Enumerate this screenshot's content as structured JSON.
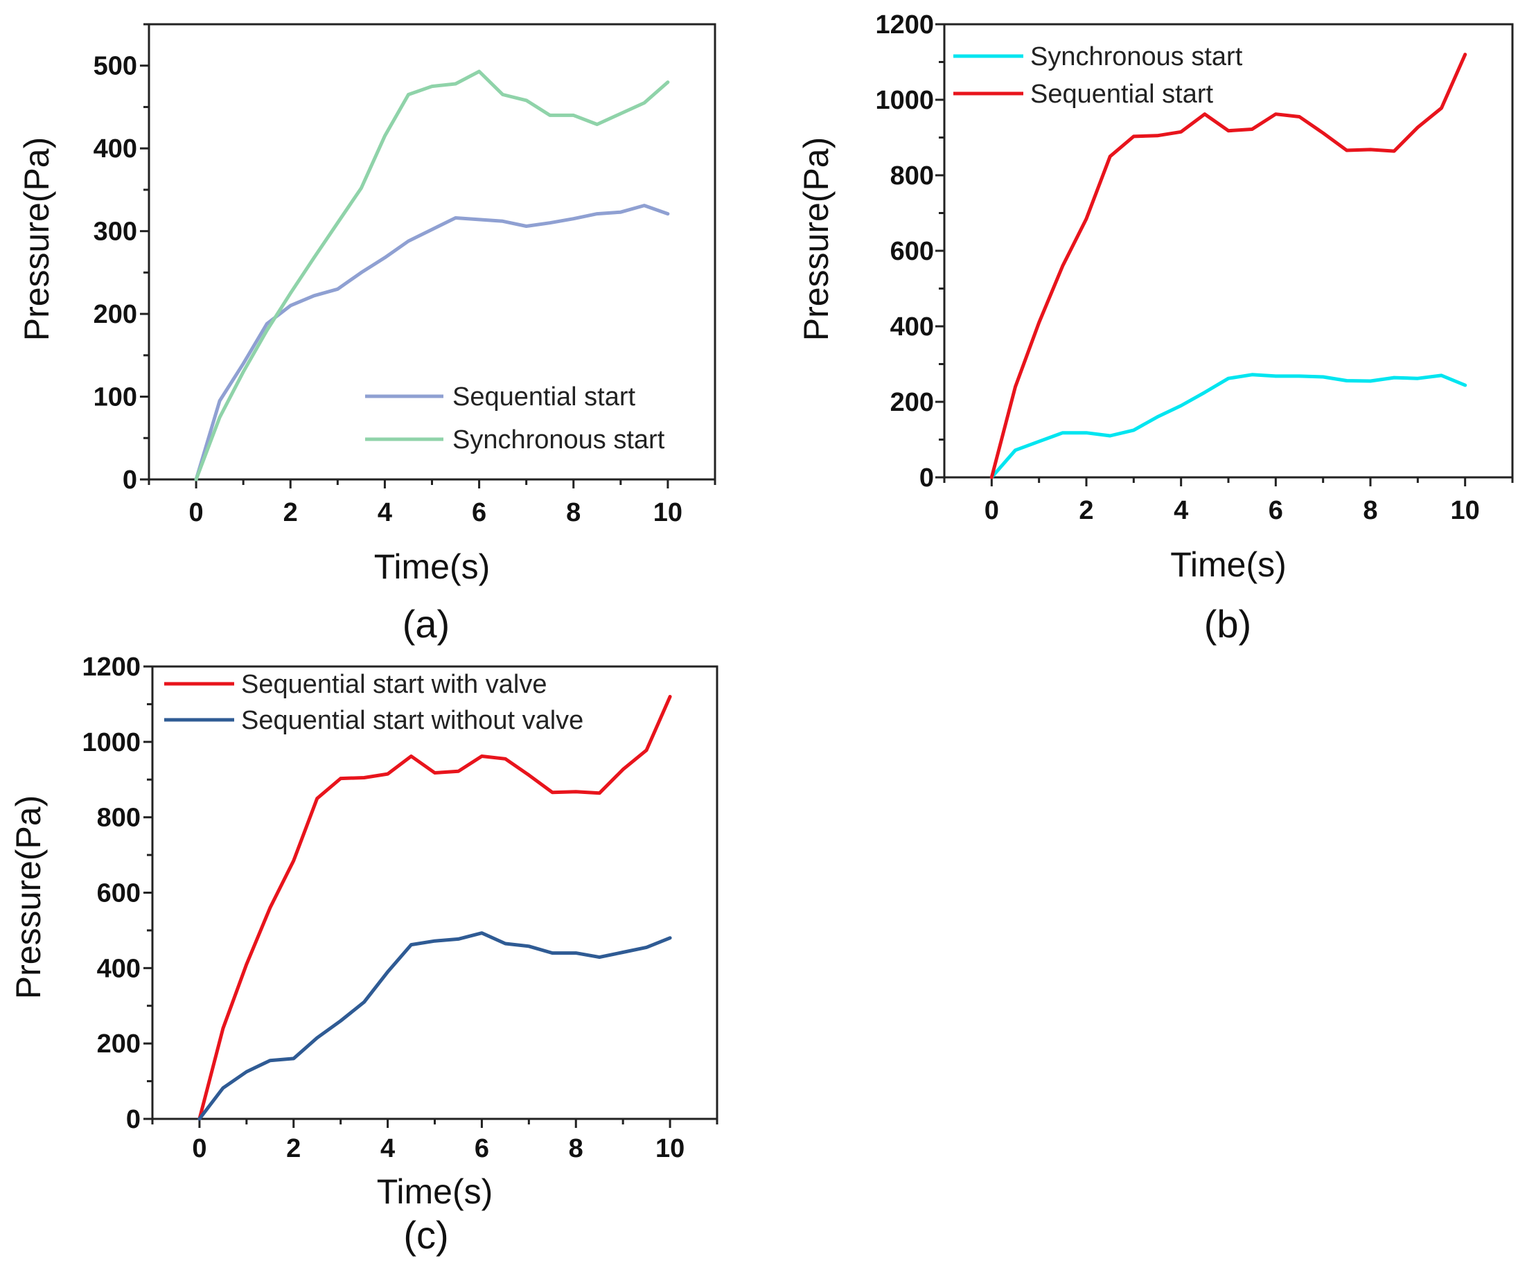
{
  "chart_data": [
    {
      "panel": "(a)",
      "type": "line",
      "xlabel": "Time(s)",
      "ylabel": "Pressure(Pa)",
      "xlim": [
        -1,
        11
      ],
      "ylim": [
        0,
        550
      ],
      "xticks": [
        0,
        2,
        4,
        6,
        8,
        10
      ],
      "yticks": [
        0,
        100,
        200,
        300,
        400,
        500
      ],
      "legend_position": "bottom-right",
      "grid": false,
      "x": [
        0,
        0.5,
        1,
        1.5,
        2,
        2.5,
        3,
        3.5,
        4,
        4.5,
        5,
        5.5,
        6,
        6.5,
        7,
        7.5,
        8,
        8.5,
        9,
        9.5,
        10
      ],
      "series": [
        {
          "name": "Sequential start",
          "color": "#8fa0d2",
          "values": [
            0,
            95,
            140,
            188,
            210,
            222,
            230,
            250,
            268,
            288,
            302,
            316,
            314,
            312,
            306,
            310,
            315,
            321,
            323,
            331,
            321
          ]
        },
        {
          "name": "Synchronous start",
          "color": "#8fd3a9",
          "values": [
            0,
            75,
            130,
            180,
            225,
            268,
            310,
            352,
            415,
            465,
            475,
            478,
            493,
            465,
            458,
            440,
            440,
            429,
            442,
            455,
            480
          ]
        }
      ]
    },
    {
      "panel": "(b)",
      "type": "line",
      "xlabel": "Time(s)",
      "ylabel": "Pressure(Pa)",
      "xlim": [
        -1,
        11
      ],
      "ylim": [
        0,
        1200
      ],
      "xticks": [
        0,
        2,
        4,
        6,
        8,
        10
      ],
      "yticks": [
        0,
        200,
        400,
        600,
        800,
        1000,
        1200
      ],
      "legend_position": "top-left",
      "grid": false,
      "x": [
        0,
        0.5,
        1,
        1.5,
        2,
        2.5,
        3,
        3.5,
        4,
        4.5,
        5,
        5.5,
        6,
        6.5,
        7,
        7.5,
        8,
        8.5,
        9,
        9.5,
        10
      ],
      "series": [
        {
          "name": "Synchronous start",
          "color": "#00e5f0",
          "values": [
            0,
            72,
            95,
            118,
            118,
            110,
            125,
            160,
            190,
            225,
            262,
            272,
            268,
            268,
            266,
            256,
            255,
            264,
            262,
            270,
            244
          ]
        },
        {
          "name": "Sequential start",
          "color": "#e8141c",
          "values": [
            0,
            240,
            410,
            560,
            685,
            850,
            903,
            905,
            915,
            962,
            918,
            922,
            962,
            955,
            912,
            866,
            868,
            864,
            927,
            978,
            1120
          ]
        }
      ]
    },
    {
      "panel": "(c)",
      "type": "line",
      "xlabel": "Time(s)",
      "ylabel": "Pressure(Pa)",
      "xlim": [
        -1,
        11
      ],
      "ylim": [
        0,
        1200
      ],
      "xticks": [
        0,
        2,
        4,
        6,
        8,
        10
      ],
      "yticks": [
        0,
        200,
        400,
        600,
        800,
        1000,
        1200
      ],
      "legend_position": "top-left",
      "grid": false,
      "x": [
        0,
        0.5,
        1,
        1.5,
        2,
        2.5,
        3,
        3.5,
        4,
        4.5,
        5,
        5.5,
        6,
        6.5,
        7,
        7.5,
        8,
        8.5,
        9,
        9.5,
        10
      ],
      "series": [
        {
          "name": "Sequential start with valve",
          "color": "#e8141c",
          "values": [
            0,
            240,
            410,
            560,
            685,
            850,
            903,
            905,
            915,
            962,
            918,
            922,
            962,
            955,
            912,
            866,
            868,
            864,
            927,
            978,
            1120
          ]
        },
        {
          "name": "Sequential start without valve",
          "color": "#2f5b94",
          "values": [
            0,
            82,
            125,
            155,
            160,
            215,
            260,
            310,
            390,
            462,
            472,
            477,
            493,
            465,
            458,
            440,
            440,
            429,
            442,
            455,
            480
          ]
        }
      ]
    }
  ]
}
